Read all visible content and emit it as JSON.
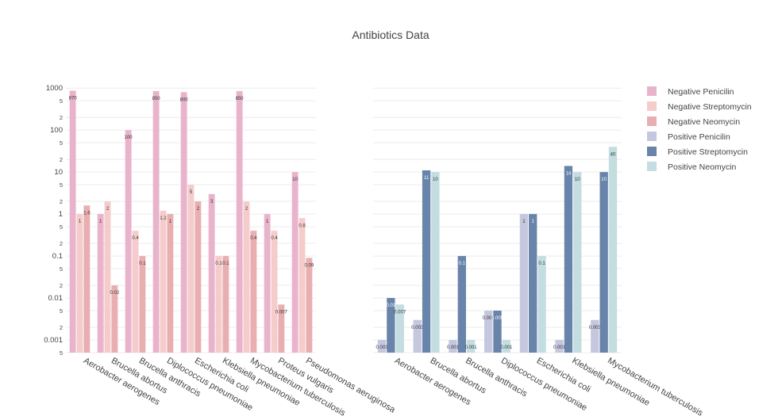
{
  "chart_data": {
    "title": "Antibiotics Data",
    "scale": "log",
    "grid": true,
    "legend_position": "top-right",
    "legend": [
      {
        "name": "Negative Penicilin",
        "color": "#e9b3cc"
      },
      {
        "name": "Negative Streptomycin",
        "color": "#f5cccb"
      },
      {
        "name": "Negative Neomycin",
        "color": "#e9aeb0"
      },
      {
        "name": "Positive Penicilin",
        "color": "#c5c7df"
      },
      {
        "name": "Positive Streptomycin",
        "color": "#6884aa"
      },
      {
        "name": "Positive Neomycin",
        "color": "#c3dde0"
      }
    ],
    "y_ticks": [
      {
        "v": 0.001,
        "t": "0.001"
      },
      {
        "v": 0.01,
        "t": "0.01"
      },
      {
        "v": 0.1,
        "t": "0.1"
      },
      {
        "v": 1,
        "t": "1"
      },
      {
        "v": 10,
        "t": "10"
      },
      {
        "v": 100,
        "t": "100"
      },
      {
        "v": 1000,
        "t": "1000"
      }
    ],
    "y_minor_ticks": [
      {
        "v": 0.0005,
        "t": "5"
      },
      {
        "v": 0.002,
        "t": "2"
      },
      {
        "v": 0.005,
        "t": "5"
      },
      {
        "v": 0.02,
        "t": "2"
      },
      {
        "v": 0.05,
        "t": "5"
      },
      {
        "v": 0.2,
        "t": "2"
      },
      {
        "v": 0.5,
        "t": "5"
      },
      {
        "v": 2,
        "t": "2"
      },
      {
        "v": 5,
        "t": "5"
      },
      {
        "v": 20,
        "t": "2"
      },
      {
        "v": 50,
        "t": "5"
      },
      {
        "v": 200,
        "t": "2"
      },
      {
        "v": 500,
        "t": "5"
      }
    ],
    "panels": [
      {
        "type": "bar",
        "categories": [
          "Aerobacter aerogenes",
          "Brucella abortus",
          "Brucella anthracis",
          "Diplococcus pneumoniae",
          "Escherichia coli",
          "Klebsiella pneumoniae",
          "Mycobacterium tuberculosis",
          "Proteus vulgaris",
          "Pseudomonas aeruginosa"
        ],
        "ylim": [
          0.0005,
          1200
        ],
        "series": [
          {
            "name": "Negative Penicilin",
            "color": "#e9b3cc",
            "values": [
              870,
              1,
              100,
              850,
              800,
              3,
              850,
              1,
              10
            ],
            "labels": [
              "870",
              "1",
              "100",
              "850",
              "800",
              "3",
              "850",
              "1",
              "10"
            ]
          },
          {
            "name": "Negative Streptomycin",
            "color": "#f5cccb",
            "values": [
              1,
              2,
              0.4,
              1.2,
              5,
              0.1,
              2,
              0.4,
              0.8
            ],
            "labels": [
              "1",
              "2",
              "0.4",
              "1.2",
              "5",
              "0.1",
              "2",
              "0.4",
              "0.8"
            ]
          },
          {
            "name": "Negative Neomycin",
            "color": "#e9aeb0",
            "values": [
              1.6,
              0.02,
              0.1,
              1,
              2,
              0.1,
              0.4,
              0.007,
              0.09
            ],
            "labels": [
              "1.6",
              "0.02",
              "0.1",
              "1",
              "2",
              "0.1",
              "0.4",
              "0.007",
              "0.09"
            ]
          }
        ]
      },
      {
        "type": "bar",
        "categories": [
          "Aerobacter aerogenes",
          "Brucella abortus",
          "Brucella anthracis",
          "Diplococcus pneumoniae",
          "Escherichia coli",
          "Klebsiella pneumoniae",
          "Mycobacterium tuberculosis"
        ],
        "ylim": [
          0.0005,
          1200
        ],
        "series": [
          {
            "name": "Positive Penicilin",
            "color": "#c5c7df",
            "values": [
              0.001,
              0.003,
              0.001,
              0.005,
              1,
              0.001,
              0.003
            ],
            "labels": [
              "0.001",
              "0.003",
              "0.001",
              "0.005",
              "1",
              "0.001",
              "0.003"
            ]
          },
          {
            "name": "Positive Streptomycin",
            "color": "#6884aa",
            "values": [
              0.01,
              11,
              0.1,
              0.005,
              1,
              14,
              10
            ],
            "labels": [
              "0.01",
              "11",
              "0.1",
              "0.005",
              "1",
              "14",
              "10"
            ]
          },
          {
            "name": "Positive Neomycin",
            "color": "#c3dde0",
            "values": [
              0.007,
              10,
              0.001,
              0.001,
              0.1,
              10,
              40
            ],
            "labels": [
              "0.007",
              "10",
              "0.001",
              "0.001",
              "0.1",
              "10",
              "40"
            ]
          }
        ]
      }
    ]
  }
}
